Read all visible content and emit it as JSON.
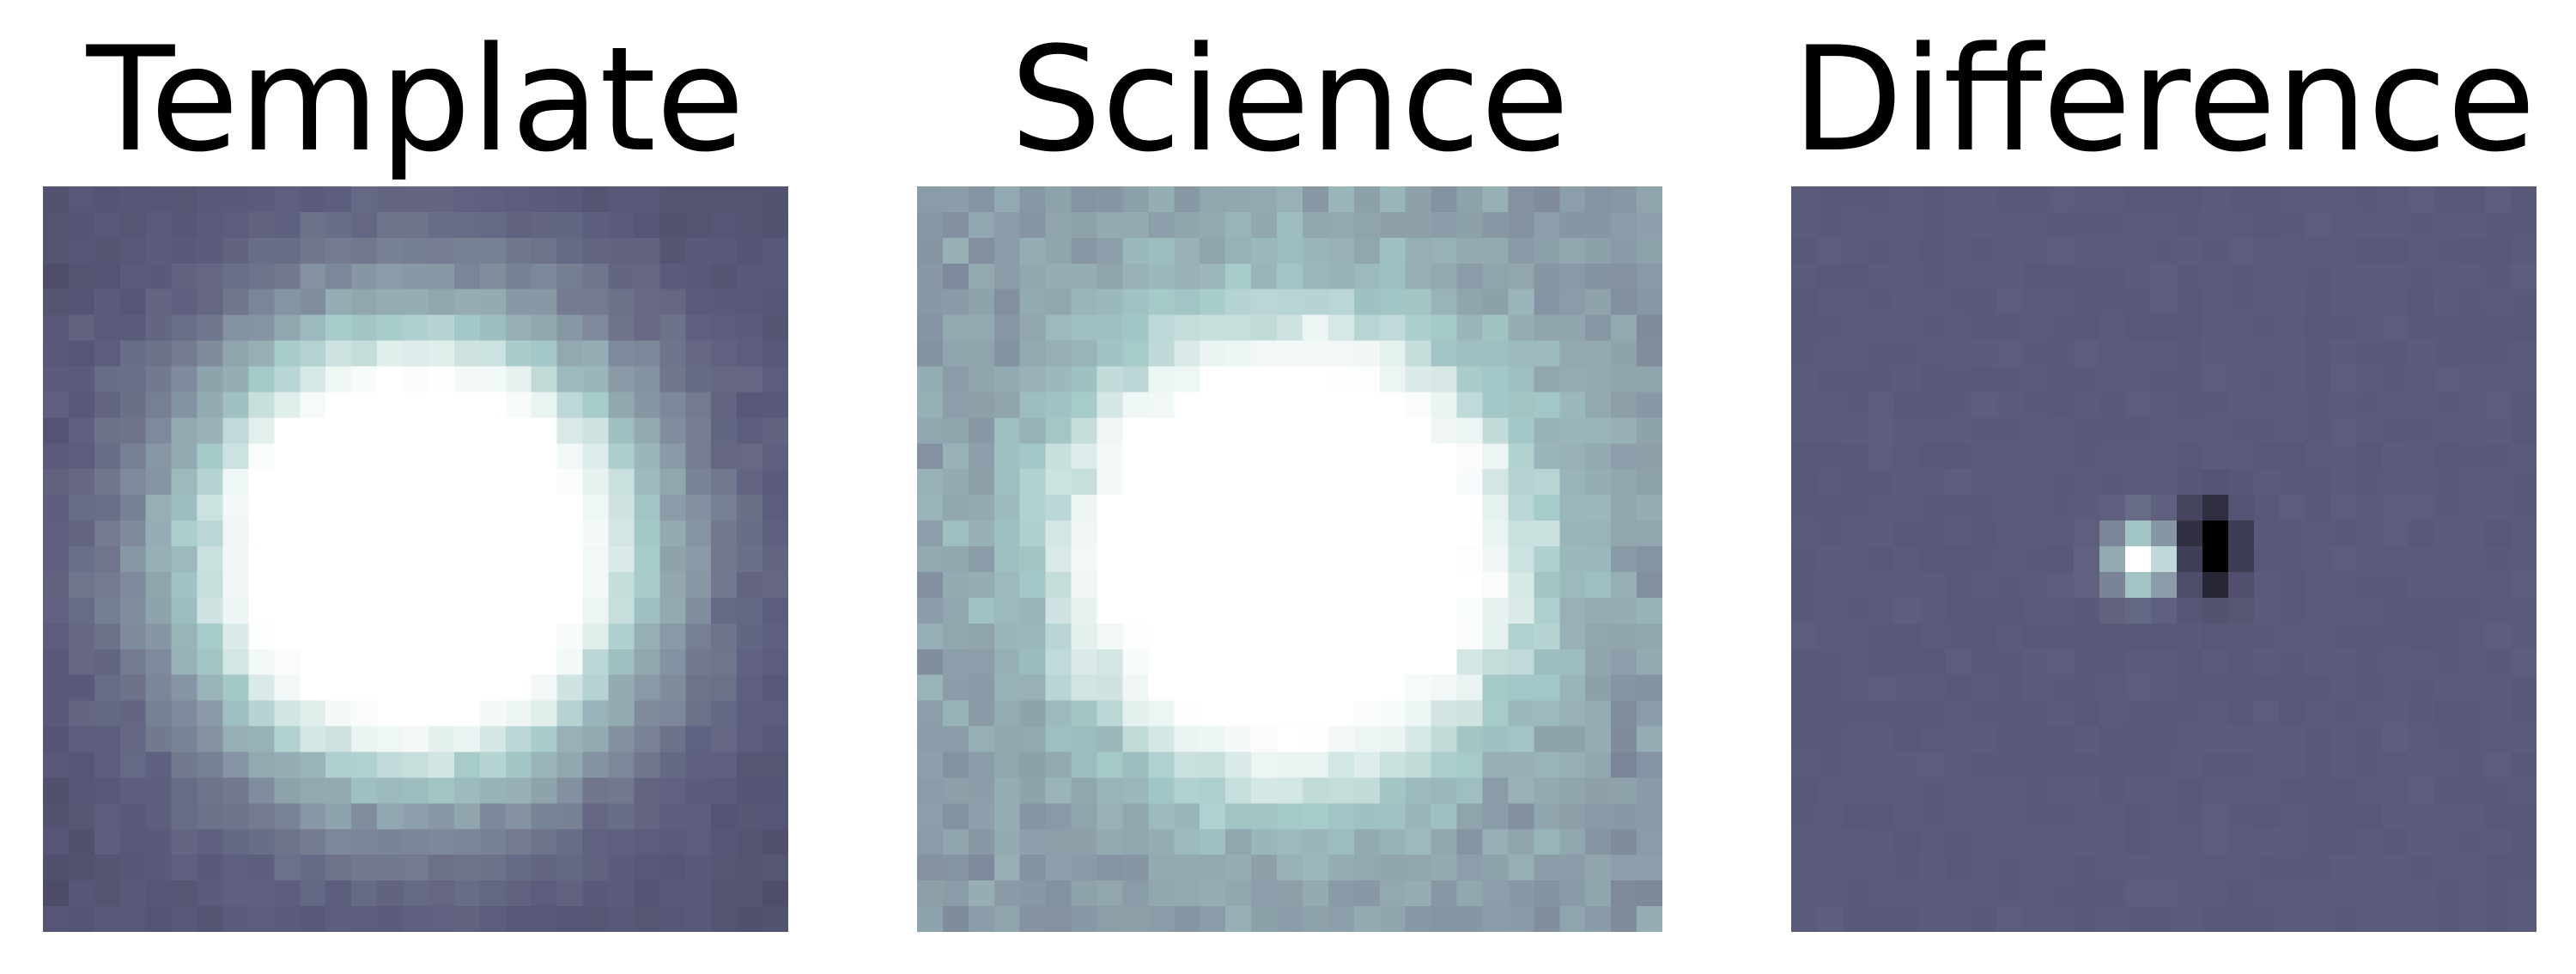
{
  "figure": {
    "panels": [
      {
        "title": "Template"
      },
      {
        "title": "Science"
      },
      {
        "title": "Difference"
      }
    ]
  },
  "colors": {
    "colormap": [
      "#000000",
      "#4e4e6c",
      "#5b5b7c",
      "#73798f",
      "#92a8b0",
      "#a5cac8",
      "#e8f3f1",
      "#ffffff"
    ]
  }
}
